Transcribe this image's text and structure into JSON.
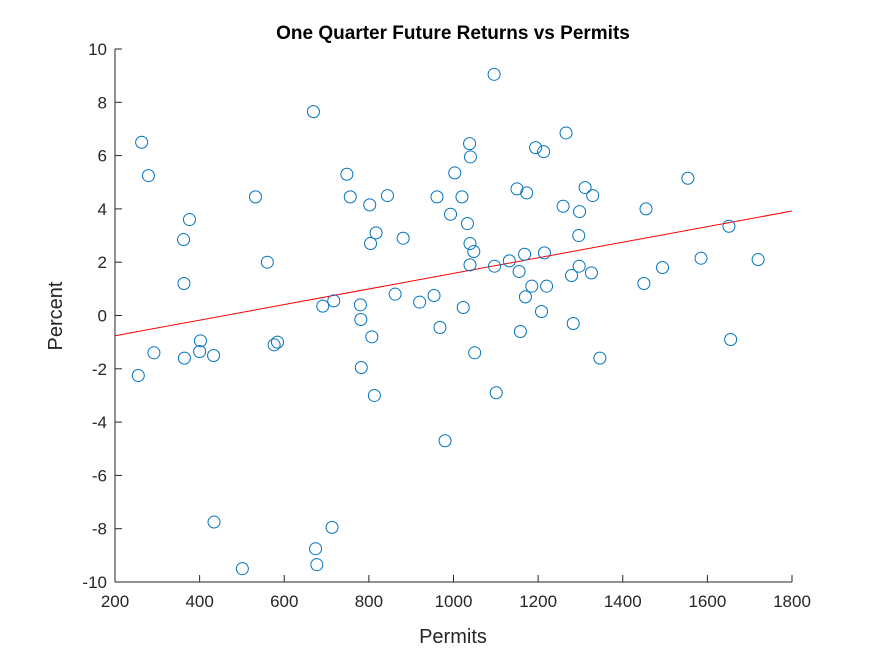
{
  "chart_data": {
    "type": "scatter",
    "title": "One Quarter Future Returns vs Permits",
    "xlabel": "Permits",
    "ylabel": "Percent",
    "xlim": [
      200,
      1800
    ],
    "ylim": [
      -10,
      10
    ],
    "xticks": [
      200,
      400,
      600,
      800,
      1000,
      1200,
      1400,
      1600,
      1800
    ],
    "yticks": [
      -10,
      -8,
      -6,
      -4,
      -2,
      0,
      2,
      4,
      6,
      8,
      10
    ],
    "grid": false,
    "legend": "none",
    "marker_color": "#0072BD",
    "fit_color": "#FF0000",
    "series": [
      {
        "marker": "open-circle",
        "points": [
          [
            255,
            -2.25
          ],
          [
            263,
            6.5
          ],
          [
            279,
            5.25
          ],
          [
            292,
            -1.4
          ],
          [
            362,
            2.85
          ],
          [
            363,
            1.2
          ],
          [
            364,
            -1.6
          ],
          [
            376,
            3.6
          ],
          [
            400,
            -1.35
          ],
          [
            402,
            -0.95
          ],
          [
            433,
            -1.5
          ],
          [
            434,
            -7.75
          ],
          [
            501,
            -9.5
          ],
          [
            532,
            4.45
          ],
          [
            560,
            2.0
          ],
          [
            576,
            -1.1
          ],
          [
            584,
            -1.0
          ],
          [
            669,
            7.65
          ],
          [
            674,
            -8.75
          ],
          [
            677,
            -9.35
          ],
          [
            691,
            0.35
          ],
          [
            713,
            -7.95
          ],
          [
            717,
            0.55
          ],
          [
            748,
            5.3
          ],
          [
            756,
            4.45
          ],
          [
            780,
            0.4
          ],
          [
            781,
            -0.15
          ],
          [
            782,
            -1.95
          ],
          [
            802,
            4.15
          ],
          [
            804,
            2.7
          ],
          [
            807,
            -0.8
          ],
          [
            813,
            -3.0
          ],
          [
            817,
            3.1
          ],
          [
            844,
            4.5
          ],
          [
            862,
            0.8
          ],
          [
            881,
            2.9
          ],
          [
            920,
            0.5
          ],
          [
            954,
            0.75
          ],
          [
            961,
            4.45
          ],
          [
            968,
            -0.45
          ],
          [
            980,
            -4.7
          ],
          [
            993,
            3.8
          ],
          [
            1003,
            5.35
          ],
          [
            1020,
            4.45
          ],
          [
            1023,
            0.3
          ],
          [
            1033,
            3.45
          ],
          [
            1038,
            6.45
          ],
          [
            1039,
            2.7
          ],
          [
            1039,
            1.9
          ],
          [
            1040,
            5.95
          ],
          [
            1048,
            2.4
          ],
          [
            1050,
            -1.4
          ],
          [
            1096,
            9.05
          ],
          [
            1097,
            1.85
          ],
          [
            1101,
            -2.9
          ],
          [
            1132,
            2.05
          ],
          [
            1150,
            4.75
          ],
          [
            1155,
            1.65
          ],
          [
            1158,
            -0.6
          ],
          [
            1168,
            2.3
          ],
          [
            1170,
            0.7
          ],
          [
            1173,
            4.6
          ],
          [
            1185,
            1.1
          ],
          [
            1194,
            6.3
          ],
          [
            1208,
            0.15
          ],
          [
            1213,
            6.15
          ],
          [
            1215,
            2.35
          ],
          [
            1220,
            1.1
          ],
          [
            1259,
            4.1
          ],
          [
            1266,
            6.85
          ],
          [
            1279,
            1.5
          ],
          [
            1283,
            -0.3
          ],
          [
            1296,
            3.0
          ],
          [
            1297,
            1.85
          ],
          [
            1298,
            3.9
          ],
          [
            1311,
            4.8
          ],
          [
            1326,
            1.6
          ],
          [
            1329,
            4.5
          ],
          [
            1346,
            -1.6
          ],
          [
            1450,
            1.2
          ],
          [
            1455,
            4.0
          ],
          [
            1494,
            1.8
          ],
          [
            1554,
            5.15
          ],
          [
            1585,
            2.15
          ],
          [
            1651,
            3.35
          ],
          [
            1655,
            -0.9
          ],
          [
            1720,
            2.1
          ]
        ]
      }
    ],
    "fit_line": {
      "type": "line",
      "x": [
        200,
        1800
      ],
      "y": [
        -0.76,
        3.92
      ]
    }
  }
}
